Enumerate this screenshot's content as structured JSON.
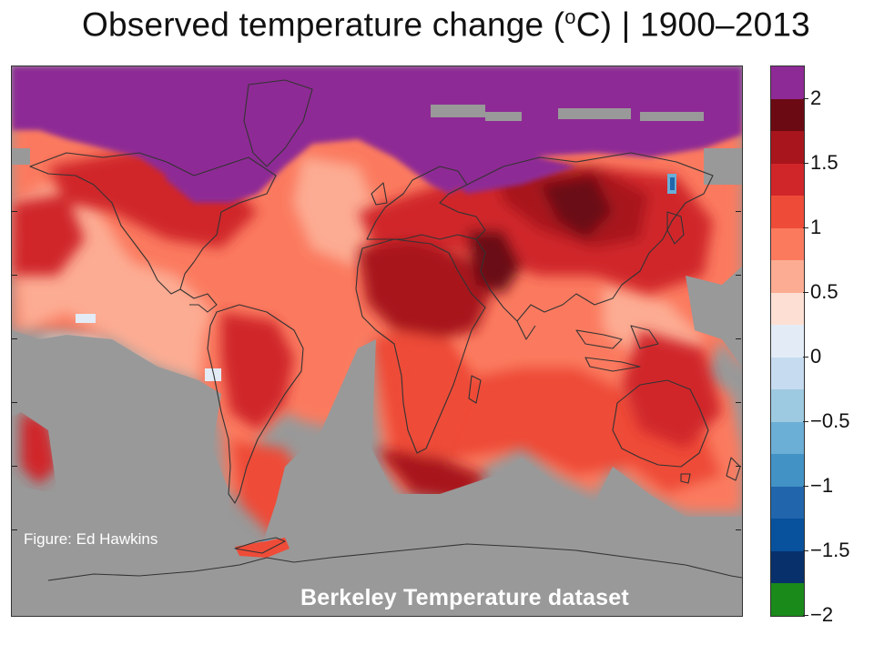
{
  "title": {
    "text_before": "Observed temperature change (",
    "degree_symbol": "o",
    "text_after": "C) | 1900–2013"
  },
  "credit": "Figure: Ed Hawkins",
  "dataset_label": "Berkeley Temperature dataset",
  "colors": {
    "no_data": "#999999",
    "coastline": "#333333"
  },
  "legend": {
    "unit": "°C",
    "bins": [
      {
        "color": "#8e2a95"
      },
      {
        "color": "#6b0a12"
      },
      {
        "color": "#a8151c"
      },
      {
        "color": "#d0262a"
      },
      {
        "color": "#ee4c38"
      },
      {
        "color": "#fb7a5e"
      },
      {
        "color": "#fcac93"
      },
      {
        "color": "#fde0d3"
      },
      {
        "color": "#e3ecf6"
      },
      {
        "color": "#c6dbef"
      },
      {
        "color": "#9ecae1"
      },
      {
        "color": "#6baed6"
      },
      {
        "color": "#4292c6"
      },
      {
        "color": "#2166ac"
      },
      {
        "color": "#08519c"
      },
      {
        "color": "#08306b"
      },
      {
        "color": "#1a8a1a"
      }
    ],
    "labels": [
      "2",
      "1.5",
      "1",
      "0.5",
      "0",
      "−0.5",
      "−1",
      "−1.5",
      "−2"
    ]
  }
}
